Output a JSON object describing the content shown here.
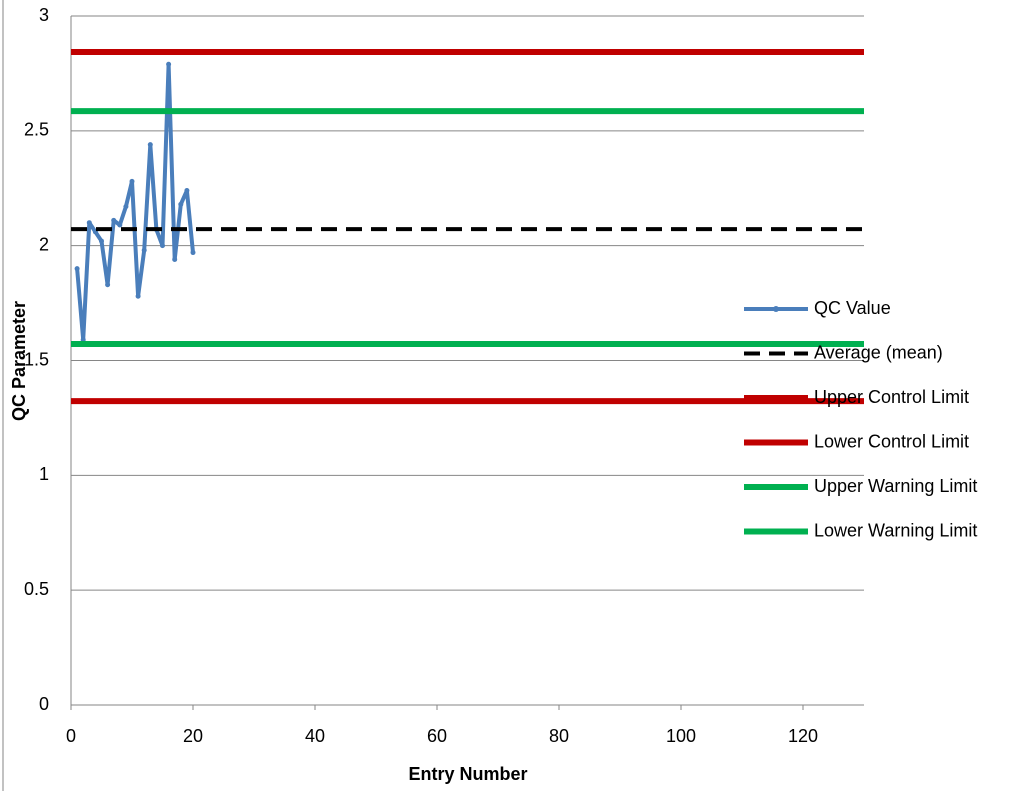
{
  "chart_data": {
    "type": "line",
    "x_label": "Entry Number",
    "y_label": "QC Parameter",
    "xlim": [
      0,
      130
    ],
    "xticks": [
      0,
      20,
      40,
      60,
      80,
      100,
      120
    ],
    "ylim": [
      0,
      3
    ],
    "yticks": [
      0,
      0.5,
      1,
      1.5,
      2,
      2.5,
      3
    ],
    "grid": true,
    "legend": "right",
    "series": [
      {
        "name": "QC Value",
        "color": "#4a7ebb",
        "x": [
          1,
          2,
          3,
          4,
          5,
          6,
          7,
          8,
          9,
          10,
          11,
          12,
          13,
          14,
          15,
          16,
          17,
          18,
          19,
          20
        ],
        "values": [
          1.9,
          1.59,
          2.1,
          2.06,
          2.02,
          1.83,
          2.11,
          2.09,
          2.17,
          2.28,
          1.78,
          1.98,
          2.44,
          2.07,
          2.0,
          2.79,
          1.94,
          2.18,
          2.24,
          1.97
        ]
      },
      {
        "name": "Average (mean)",
        "color": "#000000",
        "dash": true,
        "value": 2.072
      },
      {
        "name": "Upper Control Limit",
        "color": "#c00000",
        "value": 2.843
      },
      {
        "name": "Lower Control Limit",
        "color": "#c00000",
        "value": 1.323
      },
      {
        "name": "Upper Warning Limit",
        "color": "#00b050",
        "value": 2.586
      },
      {
        "name": "Lower Warning Limit",
        "color": "#00b050",
        "value": 1.572
      }
    ]
  }
}
